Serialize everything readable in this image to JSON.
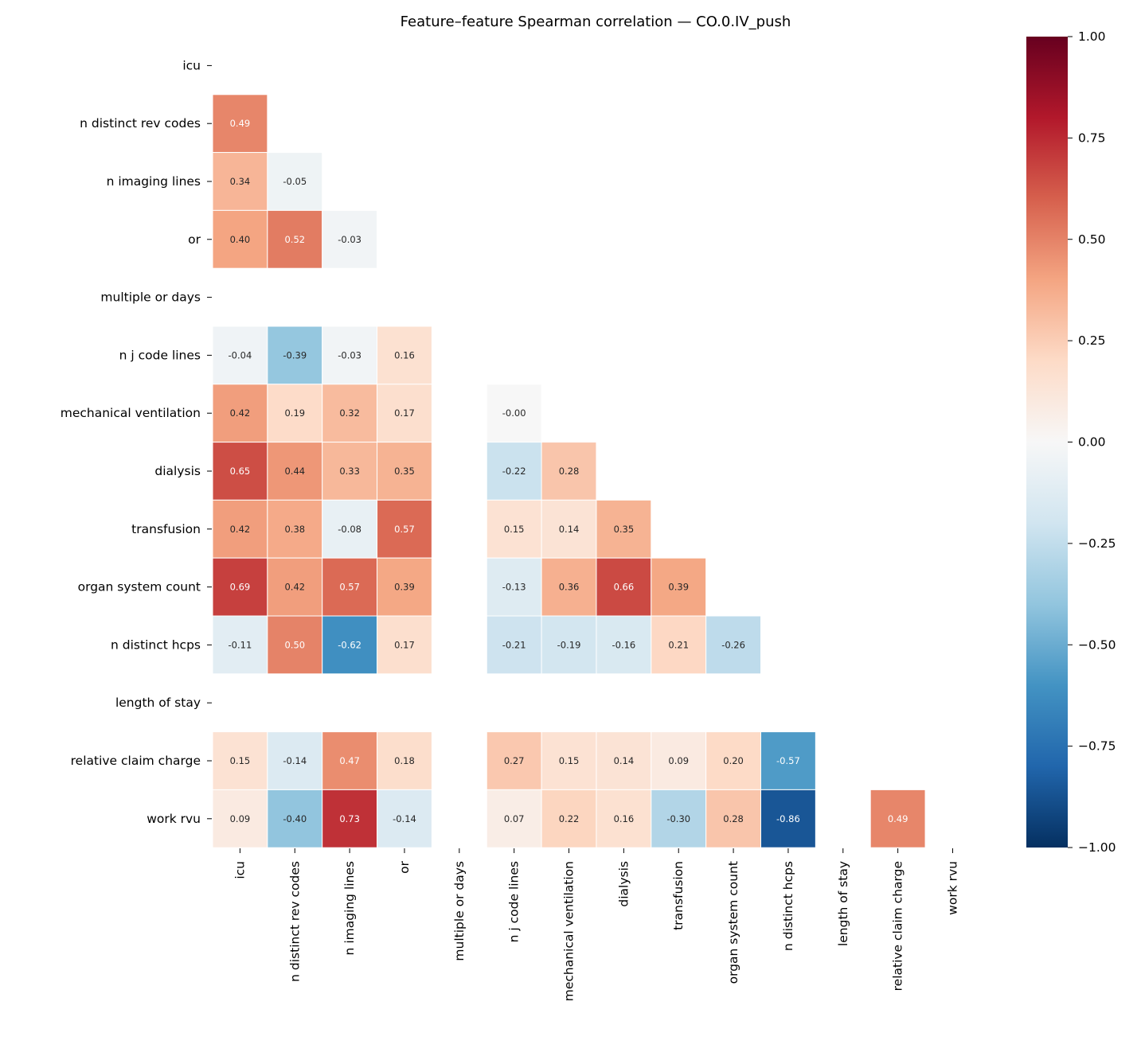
{
  "chart_data": {
    "type": "heatmap",
    "title": "Feature–feature Spearman correlation — CO.0.IV_push",
    "labels": [
      "icu",
      "n distinct rev codes",
      "n imaging lines",
      "or",
      "multiple or days",
      "n j code lines",
      "mechanical ventilation",
      "dialysis",
      "transfusion",
      "organ system count",
      "n distinct hcps",
      "length of stay",
      "relative claim charge",
      "work rvu"
    ],
    "mask": "upper triangle and diagonal; constant features blank",
    "values": [
      [],
      [
        0.49
      ],
      [
        0.34,
        -0.05
      ],
      [
        0.4,
        0.52,
        -0.03
      ],
      [
        null,
        null,
        null,
        null
      ],
      [
        -0.04,
        -0.39,
        -0.03,
        0.16,
        null
      ],
      [
        0.42,
        0.19,
        0.32,
        0.17,
        null,
        -0.0
      ],
      [
        0.65,
        0.44,
        0.33,
        0.35,
        null,
        -0.22,
        0.28
      ],
      [
        0.42,
        0.38,
        -0.08,
        0.57,
        null,
        0.15,
        0.14,
        0.35
      ],
      [
        0.69,
        0.42,
        0.57,
        0.39,
        null,
        -0.13,
        0.36,
        0.66,
        0.39
      ],
      [
        -0.11,
        0.5,
        -0.62,
        0.17,
        null,
        -0.21,
        -0.19,
        -0.16,
        0.21,
        -0.26
      ],
      [
        null,
        null,
        null,
        null,
        null,
        null,
        null,
        null,
        null,
        null,
        null
      ],
      [
        0.15,
        -0.14,
        0.47,
        0.18,
        null,
        0.27,
        0.15,
        0.14,
        0.09,
        0.2,
        -0.57,
        null
      ],
      [
        0.09,
        -0.4,
        0.73,
        -0.14,
        null,
        0.07,
        0.22,
        0.16,
        -0.3,
        0.28,
        -0.86,
        null,
        0.49
      ]
    ],
    "colormap": "RdBu_r",
    "vmin": -1,
    "vmax": 1,
    "colorbar_ticks": [
      "1.00",
      "0.75",
      "0.50",
      "0.25",
      "0.00",
      "−0.25",
      "−0.50",
      "−0.75",
      "−1.00"
    ],
    "annotation_format": "0.00"
  }
}
